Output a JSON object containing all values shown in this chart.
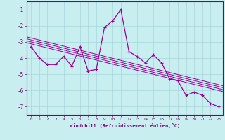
{
  "hours": [
    0,
    1,
    2,
    3,
    4,
    5,
    6,
    7,
    8,
    9,
    10,
    11,
    12,
    13,
    14,
    15,
    16,
    17,
    18,
    19,
    20,
    21,
    22,
    23
  ],
  "windchill": [
    -3.3,
    -4.0,
    -4.4,
    -4.4,
    -3.9,
    -4.5,
    -3.3,
    -4.8,
    -4.7,
    -2.1,
    -1.7,
    -1.0,
    -3.6,
    -3.9,
    -4.3,
    -3.8,
    -4.3,
    -5.3,
    -5.4,
    -6.3,
    -6.1,
    -6.3,
    -6.8,
    -7.0
  ],
  "line_color": "#990099",
  "marker": "+",
  "bg_color": "#c8eef0",
  "grid_color": "#a0d8dc",
  "axis_color": "#770077",
  "ylabel_vals": [
    -1,
    -2,
    -3,
    -4,
    -5,
    -6,
    -7
  ],
  "xlabel": "Windchill (Refroidissement éolien,°C)",
  "ylim": [
    -7.5,
    -0.5
  ],
  "xlim": [
    -0.5,
    23.5
  ],
  "trend_offsets": [
    -0.18,
    -0.06,
    0.06,
    0.18
  ]
}
